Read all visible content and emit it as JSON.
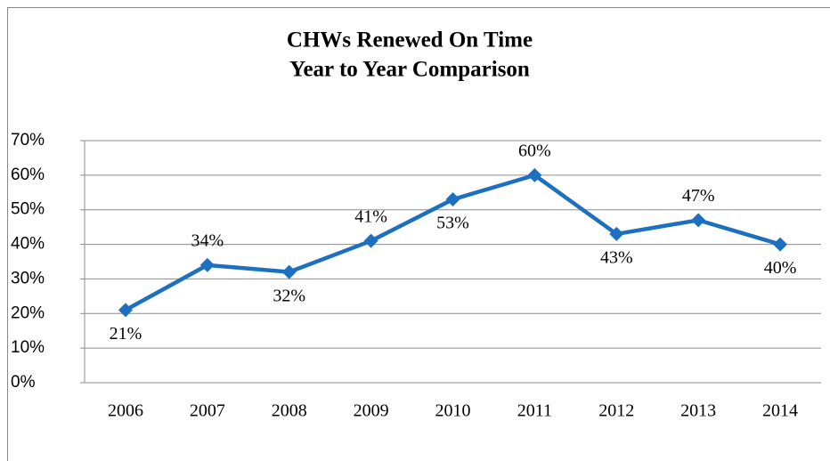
{
  "chart_data": {
    "type": "line",
    "title": "CHWs Renewed On Time",
    "subtitle": "Year to Year Comparison",
    "categories": [
      "2006",
      "2007",
      "2008",
      "2009",
      "2010",
      "2011",
      "2012",
      "2013",
      "2014"
    ],
    "series": [
      {
        "name": "CHWs Renewed On Time",
        "color": "#1c70bf",
        "values": [
          21,
          34,
          32,
          41,
          53,
          60,
          43,
          47,
          40
        ],
        "value_labels": [
          "21%",
          "34%",
          "32%",
          "41%",
          "53%",
          "60%",
          "43%",
          "47%",
          "40%"
        ]
      }
    ],
    "ylim": [
      0,
      70
    ],
    "yticks": [
      {
        "value": 0,
        "label": "0%"
      },
      {
        "value": 10,
        "label": "10%"
      },
      {
        "value": 20,
        "label": "20%"
      },
      {
        "value": 30,
        "label": "30%"
      },
      {
        "value": 40,
        "label": "40%"
      },
      {
        "value": 50,
        "label": "50%"
      },
      {
        "value": 60,
        "label": "60%"
      },
      {
        "value": 70,
        "label": "70%"
      }
    ],
    "grid": true,
    "legend": false
  }
}
